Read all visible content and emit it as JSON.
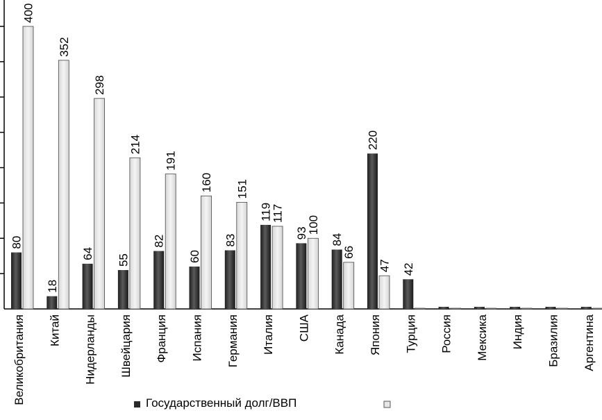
{
  "chart_data": {
    "type": "bar",
    "title": "",
    "xlabel": "",
    "ylabel": "",
    "ylim": [
      0,
      440
    ],
    "y_tick_step": 50,
    "grid": false,
    "legend_position": "bottom",
    "categories": [
      "Великобритания",
      "Китай",
      "Нидерланды",
      "Швейцария",
      "Франция",
      "Испания",
      "Германия",
      "Италия",
      "США",
      "Канада",
      "Япония",
      "Турция",
      "Россия",
      "Мексика",
      "Индия",
      "Бразилия",
      "Аргентина"
    ],
    "series": [
      {
        "name": "Государственный долг/ВВП",
        "color": "#3a3a3a",
        "values": [
          80,
          18,
          64,
          55,
          82,
          60,
          83,
          119,
          93,
          84,
          220,
          42,
          3,
          3,
          3,
          3,
          3
        ],
        "labels": [
          "80",
          "18",
          "64",
          "55",
          "82",
          "60",
          "83",
          "119",
          "93",
          "84",
          "220",
          "42",
          "",
          "",
          "",
          "",
          ""
        ]
      },
      {
        "name": "",
        "color": "#e6e6e6",
        "values": [
          400,
          352,
          298,
          214,
          191,
          160,
          151,
          117,
          100,
          66,
          47,
          1,
          1,
          1,
          1,
          1,
          1
        ],
        "labels": [
          "400",
          "352",
          "298",
          "214",
          "191",
          "160",
          "151",
          "117",
          "100",
          "66",
          "47",
          "",
          "",
          "",
          "",
          "",
          ""
        ]
      }
    ]
  }
}
